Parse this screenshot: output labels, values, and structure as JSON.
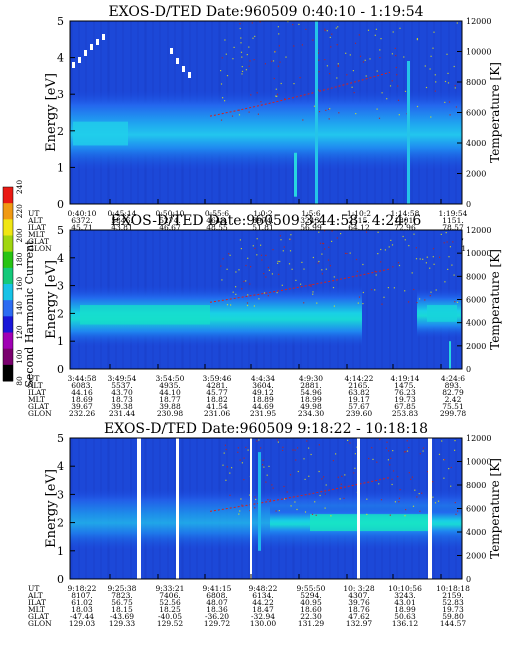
{
  "chart_data": [
    {
      "type": "heatmap",
      "title": "EXOS-D/TED   Date:960509  0:40:10 - 1:19:54",
      "ylabel": "Energy [eV]",
      "y2label": "Temperature [K]",
      "ylim": [
        0,
        5
      ],
      "y2lim": [
        0,
        12000
      ],
      "yticks": [
        "0",
        "1",
        "2",
        "3",
        "4",
        "5"
      ],
      "y2ticks": [
        "0",
        "2000",
        "4000",
        "6000",
        "8000",
        "10000",
        "12000"
      ],
      "orbit_rows": [
        "UT",
        "ALT",
        "ILAT",
        "MLT",
        "GLAT",
        "GLON"
      ],
      "orbit_cols": [
        [
          "0:40:10",
          "6372.",
          "45.71",
          "18.79",
          "33.96",
          "270.50"
        ],
        [
          "0:45:14",
          "5846.",
          "43.81",
          "18.87",
          "34.06",
          "270.52"
        ],
        [
          "0:50:10",
          "5274.",
          "46.67",
          "18.97",
          "34.91",
          "270.71"
        ],
        [
          "0:55:6",
          "4648.",
          "48.55",
          "19.07",
          "36.78",
          "271.21"
        ],
        [
          "1:0:2",
          "3974.",
          "51.81",
          "19.22",
          "40.02",
          "272.23"
        ],
        [
          "1:5:6",
          "3243.",
          "56.99",
          "19.43",
          "45.23",
          "274.23"
        ],
        [
          "1:10:2",
          "2515.",
          "64.12",
          "19.79",
          "52.61",
          "278.15"
        ],
        [
          "1:14:58",
          "1801.",
          "72.96",
          "20.71",
          "62.60",
          "287.17"
        ],
        [
          "1:19:54",
          "1151.",
          "78.57",
          "0.96",
          "73.67",
          "315.71"
        ]
      ]
    },
    {
      "type": "heatmap",
      "title": "EXOS-D/TED   Date:960509  3:44:58 - 4:24: 6",
      "ylabel": "Energy [eV]",
      "y2label": "Temperature [K]",
      "ylim": [
        0,
        5
      ],
      "y2lim": [
        0,
        12000
      ],
      "yticks": [
        "0",
        "1",
        "2",
        "3",
        "4",
        "5"
      ],
      "y2ticks": [
        "0",
        "2000",
        "4000",
        "6000",
        "8000",
        "10000",
        "12000"
      ],
      "orbit_rows": [
        "UT",
        "ALT",
        "ILAT",
        "MLT",
        "GLAT",
        "GLON"
      ],
      "orbit_cols": [
        [
          "3:44:58",
          "6083.",
          "44.16",
          "18.69",
          "39.67",
          "232.26"
        ],
        [
          "3:49:54",
          "5537.",
          "43.70",
          "18.73",
          "39.38",
          "231.44"
        ],
        [
          "3:54:50",
          "4935.",
          "44.10",
          "18.77",
          "39.88",
          "230.98"
        ],
        [
          "3:59:46",
          "4281.",
          "45.77",
          "18.82",
          "41.54",
          "231.06"
        ],
        [
          "4:4:34",
          "3604.",
          "49.12",
          "18.89",
          "44.69",
          "231.95"
        ],
        [
          "4:9:30",
          "2881.",
          "54.96",
          "18.99",
          "49.98",
          "234.30"
        ],
        [
          "4:14:22",
          "2165.",
          "63.82",
          "19.17",
          "57.67",
          "239.60"
        ],
        [
          "4:19:14",
          "1475.",
          "76.23",
          "19.73",
          "67.85",
          "253.83"
        ],
        [
          "4:24:6",
          "893.",
          "82.79",
          "2.42",
          "75.51",
          "299.78"
        ]
      ]
    },
    {
      "type": "heatmap",
      "title": "EXOS-D/TED   Date:960509  9:18:22 - 10:18:18",
      "ylabel": "Energy [eV]",
      "y2label": "Temperature [K]",
      "ylim": [
        0,
        5
      ],
      "y2lim": [
        0,
        12000
      ],
      "yticks": [
        "0",
        "1",
        "2",
        "3",
        "4",
        "5"
      ],
      "y2ticks": [
        "0",
        "2000",
        "4000",
        "6000",
        "8000",
        "10000",
        "12000"
      ],
      "orbit_rows": [
        "UT",
        "ALT",
        "ILAT",
        "MLT",
        "GLAT",
        "GLON"
      ],
      "orbit_cols": [
        [
          "9:18:22",
          "8107.",
          "61.02",
          "18.03",
          "-47.44",
          "129.03"
        ],
        [
          "9:25:38",
          "7823.",
          "56.75",
          "18.15",
          "-43.69",
          "129.33"
        ],
        [
          "9:33:21",
          "7406.",
          "52.56",
          "18.25",
          "-40.05",
          "129.52"
        ],
        [
          "9:41:15",
          "6808.",
          "48.07",
          "18.36",
          "-36.20",
          "129.72"
        ],
        [
          "9:48:22",
          "6134.",
          "44.22",
          "18.47",
          "-32.94",
          "130.00"
        ],
        [
          "9:55:50",
          "5294.",
          "40.95",
          "18.60",
          "22.30",
          "131.29"
        ],
        [
          "10: 3:28",
          "4307.",
          "39.76",
          "18.76",
          "47.62",
          "132.97"
        ],
        [
          "10:10:56",
          "3243.",
          "43.01",
          "18.99",
          "50.63",
          "136.12"
        ],
        [
          "10:18:18",
          "2159.",
          "52.83",
          "19.73",
          "59.80",
          "144.57"
        ]
      ]
    }
  ],
  "colorbar": {
    "label": "Second Harmonic Current",
    "ticks": [
      "80",
      "100",
      "120",
      "140",
      "160",
      "180",
      "200",
      "220",
      "240"
    ],
    "colors": [
      "#000000",
      "#7a006e",
      "#a000b4",
      "#1a16d8",
      "#2d6cf2",
      "#16c2e6",
      "#14c97a",
      "#28c414",
      "#a0d610",
      "#f0e614",
      "#f09a14",
      "#ea1a14"
    ]
  }
}
